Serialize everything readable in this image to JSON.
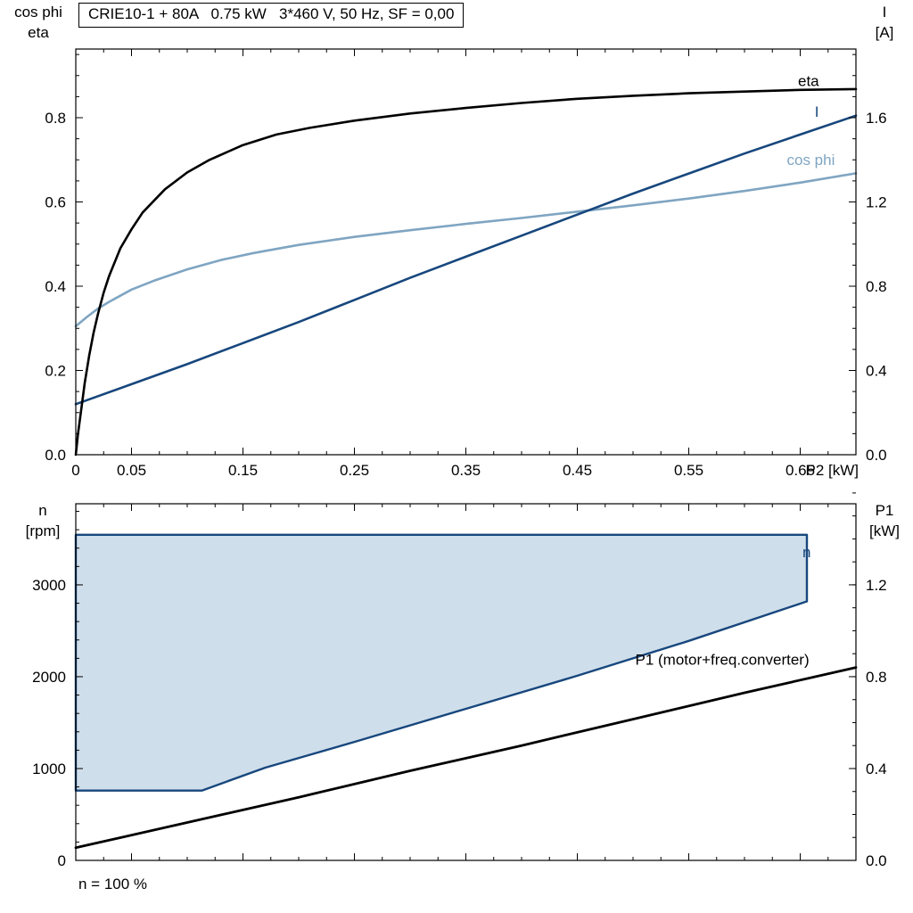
{
  "chart_data": [
    {
      "type": "line",
      "title": "CRIE10-1 + 80A   0.75 kW   3*460 V, 50 Hz, SF = 0,00",
      "xlabel": "P2 [kW]",
      "ylabel_left": "cos phi / eta",
      "ylabel_left_lines": [
        "cos phi",
        "eta"
      ],
      "ylabel_right": "I [A]",
      "ylabel_right_lines": [
        "I",
        "[A]"
      ],
      "xlim": [
        0,
        0.7
      ],
      "ylim_left": [
        0,
        0.963
      ],
      "ylim_right": [
        0,
        1.926
      ],
      "grid": false,
      "legend_position": "inline-labels",
      "x_minor_step": 0.025,
      "y_minor_left_step": 0.05,
      "y_minor_right_step": 0.1,
      "x_ticks": {
        "values": [
          0,
          0.05,
          0.15,
          0.25,
          0.35,
          0.45,
          0.55,
          0.65
        ],
        "labels": [
          "0",
          "0.05",
          "0.15",
          "0.25",
          "0.35",
          "0.45",
          "0.55",
          "0.65"
        ]
      },
      "y_ticks_left": {
        "values": [
          0.0,
          0.2,
          0.4,
          0.6,
          0.8
        ],
        "labels": [
          "0.0",
          "0.2",
          "0.4",
          "0.6",
          "0.8"
        ]
      },
      "y_ticks_right": {
        "values": [
          0.0,
          0.4,
          0.8,
          1.2,
          1.6
        ],
        "labels": [
          "0.0",
          "0.4",
          "0.8",
          "1.2",
          "1.6"
        ]
      },
      "series": [
        {
          "name": "cos phi",
          "color": "#7fa5c2",
          "width": 2.6,
          "axis": "left",
          "x": [
            0,
            0.01,
            0.02,
            0.03,
            0.05,
            0.07,
            0.1,
            0.13,
            0.16,
            0.2,
            0.25,
            0.3,
            0.35,
            0.4,
            0.45,
            0.5,
            0.55,
            0.6,
            0.65,
            0.7
          ],
          "y": [
            0.305,
            0.327,
            0.347,
            0.363,
            0.392,
            0.413,
            0.44,
            0.462,
            0.479,
            0.498,
            0.517,
            0.533,
            0.548,
            0.562,
            0.577,
            0.592,
            0.608,
            0.626,
            0.646,
            0.668
          ],
          "label": {
            "x": 0.638,
            "y": 0.688,
            "anchor": "start"
          }
        },
        {
          "name": "I",
          "color": "#17477d",
          "width": 2.6,
          "axis": "right",
          "x": [
            0,
            0.05,
            0.1,
            0.15,
            0.2,
            0.25,
            0.3,
            0.35,
            0.4,
            0.45,
            0.5,
            0.55,
            0.6,
            0.65,
            0.7
          ],
          "y": [
            0.24,
            0.335,
            0.43,
            0.53,
            0.63,
            0.735,
            0.84,
            0.94,
            1.04,
            1.14,
            1.24,
            1.335,
            1.43,
            1.52,
            1.61
          ],
          "label": {
            "x": 0.663,
            "y": 1.605,
            "anchor": "start"
          }
        },
        {
          "name": "eta",
          "color": "#000000",
          "width": 2.6,
          "axis": "left",
          "x": [
            0,
            0.002,
            0.005,
            0.008,
            0.012,
            0.016,
            0.02,
            0.025,
            0.03,
            0.04,
            0.05,
            0.06,
            0.08,
            0.1,
            0.12,
            0.15,
            0.18,
            0.21,
            0.25,
            0.3,
            0.35,
            0.4,
            0.45,
            0.5,
            0.55,
            0.6,
            0.65,
            0.7
          ],
          "y": [
            0,
            0.05,
            0.11,
            0.17,
            0.235,
            0.29,
            0.335,
            0.385,
            0.425,
            0.49,
            0.535,
            0.575,
            0.63,
            0.67,
            0.7,
            0.735,
            0.76,
            0.776,
            0.793,
            0.81,
            0.823,
            0.835,
            0.845,
            0.852,
            0.858,
            0.862,
            0.866,
            0.868
          ],
          "label": {
            "x": 0.648,
            "y": 0.875,
            "anchor": "start"
          }
        }
      ]
    },
    {
      "type": "area+line",
      "title": "",
      "xlabel": "",
      "ylabel_left": "n [rpm]",
      "ylabel_left_lines": [
        "n",
        "[rpm]"
      ],
      "ylabel_right": "P1 [kW]",
      "ylabel_right_lines": [
        "P1",
        "[kW]"
      ],
      "footnote": "n = 100 %",
      "xlim": [
        0,
        0.7
      ],
      "ylim_left": [
        0,
        3883
      ],
      "ylim_right": [
        0,
        1.553
      ],
      "grid": false,
      "x_minor_step": 0.025,
      "y_minor_left_step": 200,
      "y_minor_right_step": 0.1,
      "x_ticks": {
        "values": [
          0,
          0.05,
          0.15,
          0.25,
          0.35,
          0.45,
          0.55,
          0.65
        ],
        "labels": []
      },
      "y_ticks_left": {
        "values": [
          0,
          1000,
          2000,
          3000
        ],
        "labels": [
          "0",
          "1000",
          "2000",
          "3000"
        ]
      },
      "y_ticks_right": {
        "values": [
          0.0,
          0.4,
          0.8,
          1.2
        ],
        "labels": [
          "0.0",
          "0.4",
          "0.8",
          "1.2"
        ]
      },
      "area": {
        "name": "n",
        "fill": "#cfdeeb",
        "stroke": "#17477d",
        "stroke_width": 2.4,
        "polygon_x": [
          0,
          0.656,
          0.656,
          0.55,
          0.45,
          0.35,
          0.25,
          0.17,
          0.113,
          0
        ],
        "polygon_y": [
          3545,
          3545,
          2820,
          2390,
          2010,
          1650,
          1290,
          1010,
          760,
          760
        ],
        "label": {
          "text": "n",
          "x": 0.652,
          "y": 3300,
          "anchor": "start",
          "color": "#17477d"
        }
      },
      "series": [
        {
          "name": "P1 (motor+freq.converter)",
          "color": "#000000",
          "width": 2.8,
          "axis": "right",
          "x": [
            0,
            0.1,
            0.2,
            0.3,
            0.4,
            0.5,
            0.6,
            0.7
          ],
          "y": [
            0.055,
            0.165,
            0.275,
            0.39,
            0.5,
            0.615,
            0.73,
            0.84
          ],
          "label": {
            "x": 0.502,
            "y": 0.852,
            "anchor": "start"
          }
        }
      ]
    }
  ]
}
